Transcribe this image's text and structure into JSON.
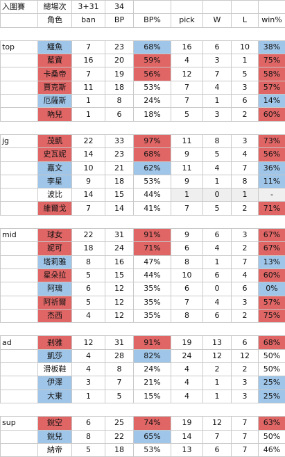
{
  "header": {
    "row1": [
      "入圍賽",
      "總場次",
      "3+31",
      "34",
      "",
      "",
      "",
      "",
      ""
    ],
    "row2": [
      "",
      "角色",
      "ban",
      "BP",
      "BP%",
      "pick",
      "W",
      "L",
      "win%"
    ]
  },
  "colors": {
    "red": "#e06666",
    "blue": "#9fc5e8",
    "grey": "#efefef"
  },
  "groups": [
    {
      "role": "top",
      "rows": [
        {
          "hero": "鱷魚",
          "ban": "7",
          "bp": "23",
          "bp_pct": "68%",
          "pick": "16",
          "w": "6",
          "l": "10",
          "win_pct": "38%",
          "hero_hl": "blue",
          "bp_hl": "blue",
          "win_hl": "blue"
        },
        {
          "hero": "藍寶",
          "ban": "16",
          "bp": "20",
          "bp_pct": "59%",
          "pick": "4",
          "w": "3",
          "l": "1",
          "win_pct": "75%",
          "hero_hl": "red",
          "bp_hl": "red",
          "win_hl": "red"
        },
        {
          "hero": "卡桑帝",
          "ban": "7",
          "bp": "19",
          "bp_pct": "56%",
          "pick": "12",
          "w": "7",
          "l": "5",
          "win_pct": "58%",
          "hero_hl": "red",
          "bp_hl": "red",
          "win_hl": "red"
        },
        {
          "hero": "賈克斯",
          "ban": "11",
          "bp": "18",
          "bp_pct": "53%",
          "pick": "7",
          "w": "4",
          "l": "3",
          "win_pct": "57%",
          "hero_hl": "red",
          "bp_hl": "",
          "win_hl": "red"
        },
        {
          "hero": "厄薩斯",
          "ban": "1",
          "bp": "8",
          "bp_pct": "24%",
          "pick": "7",
          "w": "1",
          "l": "6",
          "win_pct": "14%",
          "hero_hl": "blue",
          "bp_hl": "",
          "win_hl": "blue"
        },
        {
          "hero": "吶兒",
          "ban": "1",
          "bp": "6",
          "bp_pct": "18%",
          "pick": "5",
          "w": "3",
          "l": "2",
          "win_pct": "60%",
          "hero_hl": "red",
          "bp_hl": "",
          "win_hl": "red"
        }
      ]
    },
    {
      "role": "jg",
      "rows": [
        {
          "hero": "茂凱",
          "ban": "22",
          "bp": "33",
          "bp_pct": "97%",
          "pick": "11",
          "w": "8",
          "l": "3",
          "win_pct": "73%",
          "hero_hl": "red",
          "bp_hl": "red",
          "win_hl": "red"
        },
        {
          "hero": "史瓦妮",
          "ban": "14",
          "bp": "23",
          "bp_pct": "68%",
          "pick": "9",
          "w": "5",
          "l": "4",
          "win_pct": "56%",
          "hero_hl": "red",
          "bp_hl": "red",
          "win_hl": "red"
        },
        {
          "hero": "嘉文",
          "ban": "10",
          "bp": "21",
          "bp_pct": "62%",
          "pick": "11",
          "w": "4",
          "l": "7",
          "win_pct": "36%",
          "hero_hl": "blue",
          "bp_hl": "blue",
          "win_hl": "blue"
        },
        {
          "hero": "李星",
          "ban": "9",
          "bp": "18",
          "bp_pct": "53%",
          "pick": "9",
          "w": "1",
          "l": "8",
          "win_pct": "11%",
          "hero_hl": "blue",
          "bp_hl": "",
          "win_hl": "blue"
        },
        {
          "hero": "波比",
          "ban": "14",
          "bp": "15",
          "bp_pct": "44%",
          "pick": "1",
          "w": "0",
          "l": "1",
          "win_pct": "-",
          "hero_hl": "",
          "bp_hl": "",
          "win_hl": "grey",
          "pick_hl": "grey",
          "w_hl": "grey",
          "l_hl": "grey"
        },
        {
          "hero": "維爾戈",
          "ban": "7",
          "bp": "14",
          "bp_pct": "41%",
          "pick": "7",
          "w": "5",
          "l": "2",
          "win_pct": "71%",
          "hero_hl": "red",
          "bp_hl": "",
          "win_hl": "red"
        }
      ]
    },
    {
      "role": "mid",
      "rows": [
        {
          "hero": "球女",
          "ban": "22",
          "bp": "31",
          "bp_pct": "91%",
          "pick": "9",
          "w": "6",
          "l": "3",
          "win_pct": "67%",
          "hero_hl": "red",
          "bp_hl": "red",
          "win_hl": "red"
        },
        {
          "hero": "妮可",
          "ban": "18",
          "bp": "24",
          "bp_pct": "71%",
          "pick": "6",
          "w": "4",
          "l": "2",
          "win_pct": "67%",
          "hero_hl": "red",
          "bp_hl": "red",
          "win_hl": "red"
        },
        {
          "hero": "塔莉雅",
          "ban": "8",
          "bp": "16",
          "bp_pct": "47%",
          "pick": "8",
          "w": "1",
          "l": "7",
          "win_pct": "13%",
          "hero_hl": "blue",
          "bp_hl": "",
          "win_hl": "blue"
        },
        {
          "hero": "星朵拉",
          "ban": "5",
          "bp": "15",
          "bp_pct": "44%",
          "pick": "10",
          "w": "6",
          "l": "4",
          "win_pct": "60%",
          "hero_hl": "red",
          "bp_hl": "",
          "win_hl": "red"
        },
        {
          "hero": "阿璃",
          "ban": "6",
          "bp": "12",
          "bp_pct": "35%",
          "pick": "6",
          "w": "0",
          "l": "6",
          "win_pct": "0%",
          "hero_hl": "blue",
          "bp_hl": "",
          "win_hl": "blue"
        },
        {
          "hero": "阿祈爾",
          "ban": "5",
          "bp": "12",
          "bp_pct": "35%",
          "pick": "7",
          "w": "4",
          "l": "3",
          "win_pct": "57%",
          "hero_hl": "red",
          "bp_hl": "",
          "win_hl": "red"
        },
        {
          "hero": "杰西",
          "ban": "4",
          "bp": "12",
          "bp_pct": "35%",
          "pick": "8",
          "w": "6",
          "l": "2",
          "win_pct": "75%",
          "hero_hl": "red",
          "bp_hl": "",
          "win_hl": "red"
        }
      ]
    },
    {
      "role": "ad",
      "rows": [
        {
          "hero": "剎雅",
          "ban": "12",
          "bp": "31",
          "bp_pct": "91%",
          "pick": "19",
          "w": "13",
          "l": "6",
          "win_pct": "68%",
          "hero_hl": "red",
          "bp_hl": "red",
          "win_hl": "red"
        },
        {
          "hero": "凱莎",
          "ban": "4",
          "bp": "28",
          "bp_pct": "82%",
          "pick": "24",
          "w": "12",
          "l": "12",
          "win_pct": "50%",
          "hero_hl": "blue",
          "bp_hl": "blue",
          "win_hl": ""
        },
        {
          "hero": "滑板鞋",
          "ban": "4",
          "bp": "8",
          "bp_pct": "24%",
          "pick": "4",
          "w": "2",
          "l": "2",
          "win_pct": "50%",
          "hero_hl": "",
          "bp_hl": "",
          "win_hl": ""
        },
        {
          "hero": "伊澤",
          "ban": "3",
          "bp": "7",
          "bp_pct": "21%",
          "pick": "4",
          "w": "1",
          "l": "3",
          "win_pct": "25%",
          "hero_hl": "blue",
          "bp_hl": "",
          "win_hl": "blue"
        },
        {
          "hero": "大東",
          "ban": "1",
          "bp": "5",
          "bp_pct": "15%",
          "pick": "4",
          "w": "1",
          "l": "3",
          "win_pct": "25%",
          "hero_hl": "blue",
          "bp_hl": "",
          "win_hl": "blue"
        }
      ]
    },
    {
      "role": "sup",
      "rows": [
        {
          "hero": "銳空",
          "ban": "6",
          "bp": "25",
          "bp_pct": "74%",
          "pick": "19",
          "w": "12",
          "l": "7",
          "win_pct": "63%",
          "hero_hl": "red",
          "bp_hl": "red",
          "win_hl": "red"
        },
        {
          "hero": "銳兒",
          "ban": "8",
          "bp": "22",
          "bp_pct": "65%",
          "pick": "14",
          "w": "7",
          "l": "7",
          "win_pct": "50%",
          "hero_hl": "blue",
          "bp_hl": "blue",
          "win_hl": ""
        },
        {
          "hero": "納帝",
          "ban": "5",
          "bp": "18",
          "bp_pct": "53%",
          "pick": "13",
          "w": "6",
          "l": "7",
          "win_pct": "46%",
          "hero_hl": "",
          "bp_hl": "",
          "win_hl": ""
        }
      ]
    }
  ]
}
